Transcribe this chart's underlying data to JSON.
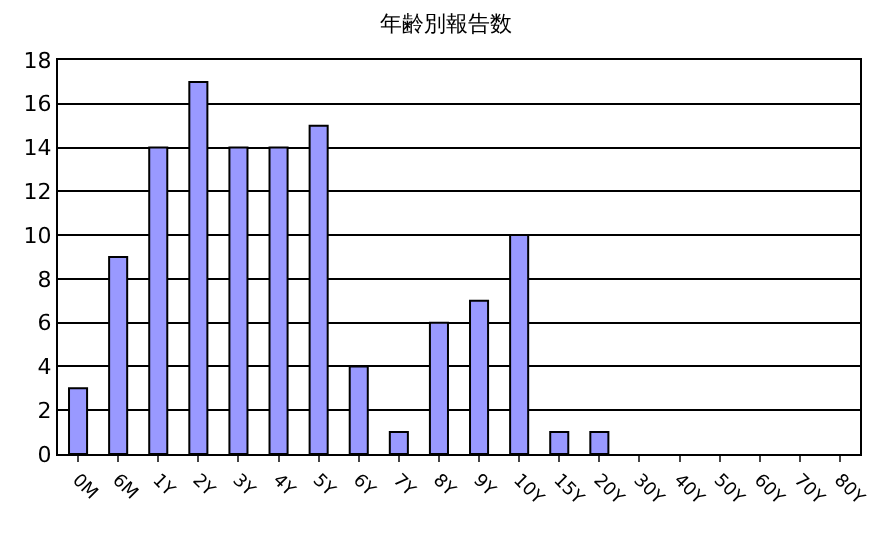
{
  "chart_data": {
    "type": "bar",
    "title": "年齢別報告数",
    "categories": [
      "0M",
      "6M",
      "1Y",
      "2Y",
      "3Y",
      "4Y",
      "5Y",
      "6Y",
      "7Y",
      "8Y",
      "9Y",
      "10Y",
      "15Y",
      "20Y",
      "30Y",
      "40Y",
      "50Y",
      "60Y",
      "70Y",
      "80Y"
    ],
    "values": [
      3,
      9,
      14,
      17,
      14,
      14,
      15,
      4,
      1,
      6,
      7,
      10,
      1,
      1,
      0,
      0,
      0,
      0,
      0,
      0
    ],
    "color": "#9999ff",
    "ylim": [
      0,
      18
    ],
    "yticks": [
      0,
      2,
      4,
      6,
      8,
      10,
      12,
      14,
      16,
      18
    ],
    "grid": "y"
  }
}
